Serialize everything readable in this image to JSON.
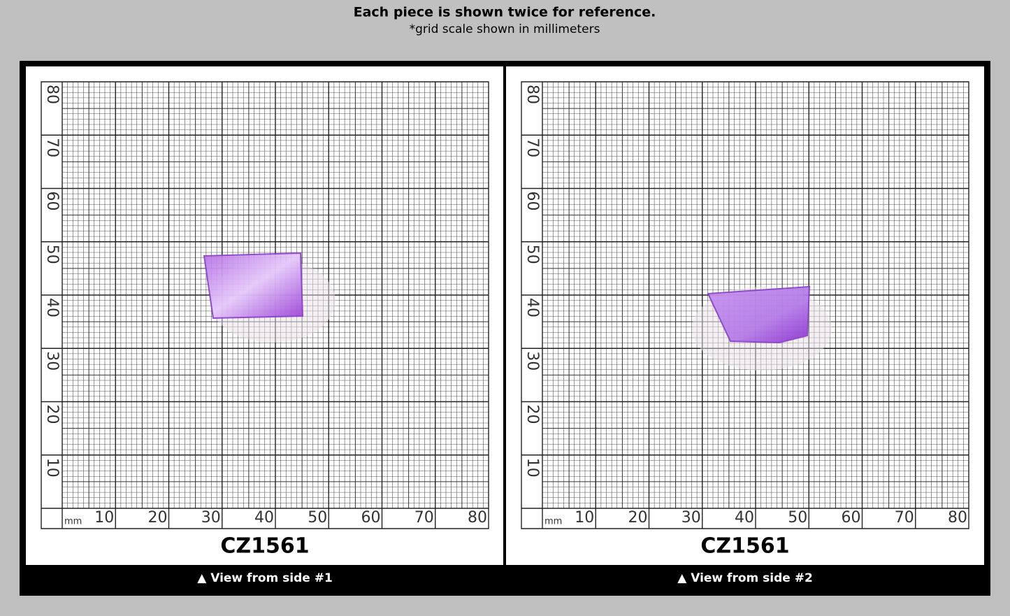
{
  "header": {
    "title": "Each piece is shown twice for reference.",
    "subtitle": "*grid scale shown in millimeters"
  },
  "panels": [
    {
      "label": "CZ1561",
      "caption": "▲ View from side #1",
      "unit": "mm",
      "x_labels": [
        "10",
        "20",
        "30",
        "40",
        "50",
        "60",
        "70",
        "80"
      ],
      "y_labels": [
        "10",
        "20",
        "30",
        "40",
        "50",
        "60",
        "70",
        "80"
      ]
    },
    {
      "label": "CZ1561",
      "caption": "▲ View from side #2",
      "unit": "mm",
      "x_labels": [
        "10",
        "20",
        "30",
        "40",
        "50",
        "60",
        "70",
        "80"
      ],
      "y_labels": [
        "10",
        "20",
        "30",
        "40",
        "50",
        "60",
        "70",
        "80"
      ]
    }
  ]
}
